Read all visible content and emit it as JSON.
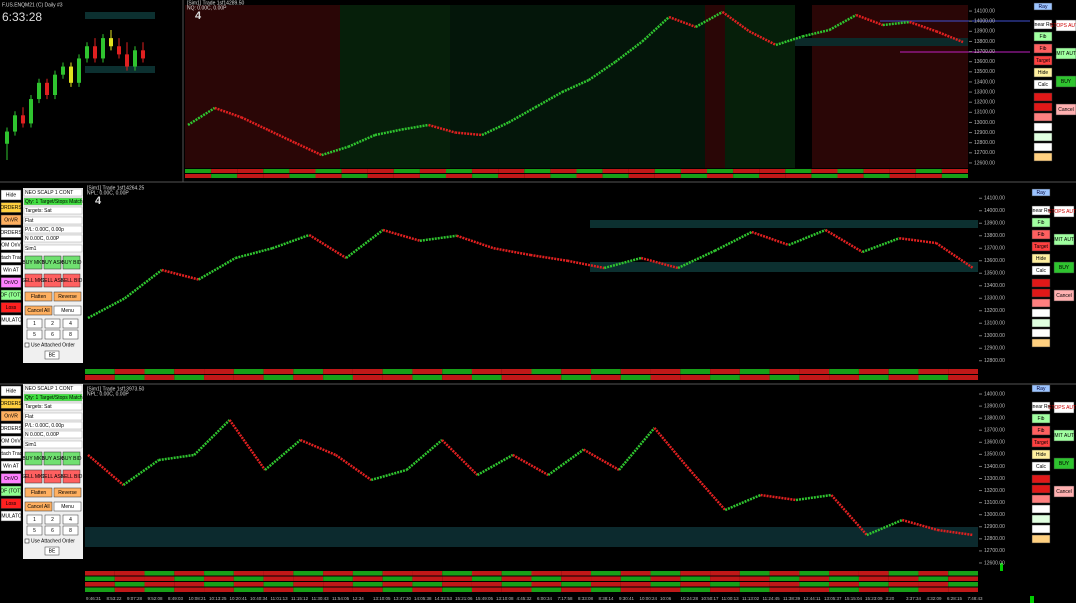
{
  "top_bar": {
    "clock": "6:33:28",
    "symbol": "F.US.ENQM21 (C) Daily #3",
    "mini_candles": [
      [
        12700,
        12900,
        12500,
        12850
      ],
      [
        12850,
        13100,
        12800,
        13050
      ],
      [
        13050,
        13150,
        12900,
        12950
      ],
      [
        12950,
        13300,
        12900,
        13250
      ],
      [
        13250,
        13500,
        13200,
        13450
      ],
      [
        13450,
        13500,
        13250,
        13300
      ],
      [
        13300,
        13600,
        13250,
        13550
      ],
      [
        13550,
        13700,
        13500,
        13650
      ],
      [
        13650,
        13700,
        13400,
        13450
      ],
      [
        13450,
        13800,
        13400,
        13750
      ],
      [
        13750,
        13950,
        13700,
        13900
      ],
      [
        13900,
        14000,
        13700,
        13750
      ],
      [
        13750,
        14050,
        13700,
        14000
      ],
      [
        14000,
        14100,
        13850,
        13900
      ],
      [
        13900,
        14000,
        13750,
        13800
      ],
      [
        13800,
        13950,
        13600,
        13650
      ],
      [
        13650,
        13900,
        13600,
        13850
      ],
      [
        13850,
        13950,
        13700,
        13750
      ]
    ]
  },
  "panels": [
    {
      "header": "[Sim1] Trade 1sf14289.50",
      "subheader": "NQ: 0.00C, 0.00P",
      "badge": "4",
      "ylim": [
        12550,
        14150
      ],
      "yticks": [
        {
          "value": 14100,
          "label": "14100.00"
        },
        {
          "value": 14000,
          "label": "14000.00"
        },
        {
          "value": 13900,
          "label": "13900.00"
        },
        {
          "value": 13800,
          "label": "13800.00"
        },
        {
          "value": 13700,
          "label": "13700.00"
        },
        {
          "value": 13600,
          "label": "13600.00"
        },
        {
          "value": 13500,
          "label": "13500.00"
        },
        {
          "value": 13400,
          "label": "13400.00"
        },
        {
          "value": 13300,
          "label": "13300.00"
        },
        {
          "value": 13200,
          "label": "13200.00"
        },
        {
          "value": 13100,
          "label": "13100.00"
        },
        {
          "value": 13000,
          "label": "13000.00"
        },
        {
          "value": 12900,
          "label": "12900.00"
        },
        {
          "value": 12800,
          "label": "12800.00"
        },
        {
          "value": 12700,
          "label": "12700.00"
        },
        {
          "value": 12600,
          "label": "12600.00"
        }
      ],
      "values": [
        12975,
        13143,
        13050,
        12925,
        12800,
        12678,
        12760,
        12876,
        12930,
        12975,
        12900,
        12876,
        13000,
        13150,
        13300,
        13419,
        13600,
        13800,
        14041,
        13943,
        14091,
        13900,
        13765,
        13850,
        13913,
        14061,
        13962,
        13992,
        13900,
        13794
      ]
    },
    {
      "header": "[Sim1] Trade 1sf14264.25",
      "subheader": "NPL: 0.00C, 0.00P",
      "badge": "4",
      "ylim": [
        12750,
        14150
      ],
      "yticks": [
        {
          "value": 14100,
          "label": "14100.00"
        },
        {
          "value": 14000,
          "label": "14000.00"
        },
        {
          "value": 13900,
          "label": "13900.00"
        },
        {
          "value": 13800,
          "label": "13800.00"
        },
        {
          "value": 13700,
          "label": "13700.00"
        },
        {
          "value": 13600,
          "label": "13600.00"
        },
        {
          "value": 13500,
          "label": "13500.00"
        },
        {
          "value": 13400,
          "label": "13400.00"
        },
        {
          "value": 13300,
          "label": "13300.00"
        },
        {
          "value": 13200,
          "label": "13200.00"
        },
        {
          "value": 13100,
          "label": "13100.00"
        },
        {
          "value": 13000,
          "label": "13000.00"
        },
        {
          "value": 12900,
          "label": "12900.00"
        },
        {
          "value": 12800,
          "label": "12800.00"
        }
      ],
      "values": [
        13142,
        13300,
        13526,
        13450,
        13622,
        13700,
        13806,
        13622,
        13846,
        13760,
        13800,
        13700,
        13646,
        13600,
        13542,
        13622,
        13542,
        13680,
        13830,
        13726,
        13846,
        13670,
        13780,
        13742,
        13542
      ]
    },
    {
      "header": "[Sim1] Trade 1sf13973.50",
      "subheader": "NPL: 0.00C, 0.00P",
      "ylim": [
        12550,
        14050
      ],
      "yticks": [
        {
          "value": 14000,
          "label": "14000.00"
        },
        {
          "value": 13900,
          "label": "13900.00"
        },
        {
          "value": 13800,
          "label": "13800.00"
        },
        {
          "value": 13700,
          "label": "13700.00"
        },
        {
          "value": 13600,
          "label": "13600.00"
        },
        {
          "value": 13500,
          "label": "13500.00"
        },
        {
          "value": 13400,
          "label": "13400.00"
        },
        {
          "value": 13300,
          "label": "13300.00"
        },
        {
          "value": 13200,
          "label": "13200.00"
        },
        {
          "value": 13100,
          "label": "13100.00"
        },
        {
          "value": 13000,
          "label": "13000.00"
        },
        {
          "value": 12900,
          "label": "12900.00"
        },
        {
          "value": 12800,
          "label": "12800.00"
        },
        {
          "value": 12700,
          "label": "12700.00"
        },
        {
          "value": 12600,
          "label": "12600.00"
        }
      ],
      "values": [
        13495,
        13246,
        13453,
        13495,
        13785,
        13371,
        13619,
        13495,
        13288,
        13371,
        13619,
        13329,
        13495,
        13329,
        13540,
        13371,
        13719,
        13371,
        13039,
        13163,
        13122,
        13163,
        12832,
        12956,
        12873,
        12832
      ]
    }
  ],
  "right_toolbar": {
    "col1": [
      "Ray",
      "Linear Reg",
      "Fib",
      "Fib",
      "Target",
      "Hide",
      "Calc"
    ],
    "col2": [
      "STOPS AUTO",
      "LIMIT AUTO",
      "BUY",
      "Cancel"
    ]
  },
  "left_toolbar": {
    "items": [
      "Hide",
      "ORDERS",
      "OnVR",
      "ORDERS",
      "DOM OnVR",
      "Attach Trade",
      "Win AT",
      "OnVO",
      "OF (TOT)",
      "Loss",
      "SIMULATOR"
    ]
  },
  "order_panel": {
    "strategy": "NEO SCALP 1 CONT",
    "qty": "Qty: 1 Target/Stops Match",
    "targets": "Targets: Sat",
    "position": "Flat",
    "pl": "P/L: 0.00C, 0.00p",
    "n": "N 0.00C, 0.00P",
    "account": "Sim1",
    "buy": [
      "BUY MKT",
      "BUY ASK",
      "BUY BID"
    ],
    "sell": [
      "SELL MKT",
      "SELL ASK",
      "SELL BID"
    ],
    "flatten": "Flatten",
    "reverse": "Reverse",
    "cancel": "Cancel All",
    "menu": "Menu",
    "qtys": [
      "1",
      "2",
      "4",
      "5",
      "6",
      "8"
    ],
    "attached": "Use Attached Order",
    "be": "BE"
  },
  "time_axis": [
    "9:46:31",
    "8:53:22",
    "9:07:28",
    "9:52:08",
    "8:49:03",
    "10:08:21",
    "10:13:25",
    "10:20:41",
    "10:40:34",
    "11:01:13",
    "11:15:12",
    "11:30:43",
    "11:54:05",
    "12:34",
    "13:10:05",
    "13:47:30",
    "14:05:38",
    "14:32:53",
    "15:21:06",
    "15:49:05",
    "13:10:08",
    "4:45:32",
    "6:00:34",
    "7:17:58",
    "8:33:08",
    "8:38:14",
    "9:30:41",
    "10:00:24",
    "10:06",
    "10:24:28",
    "10:50:17",
    "11:00:13",
    "11:13:02",
    "11:24:45",
    "11:38:39",
    "12:44:11",
    "13:05:37",
    "15:15:04",
    "15:23:09",
    "3:20",
    "3:37:34",
    "4:32:09",
    "6:28:15",
    "7:48:43"
  ]
}
